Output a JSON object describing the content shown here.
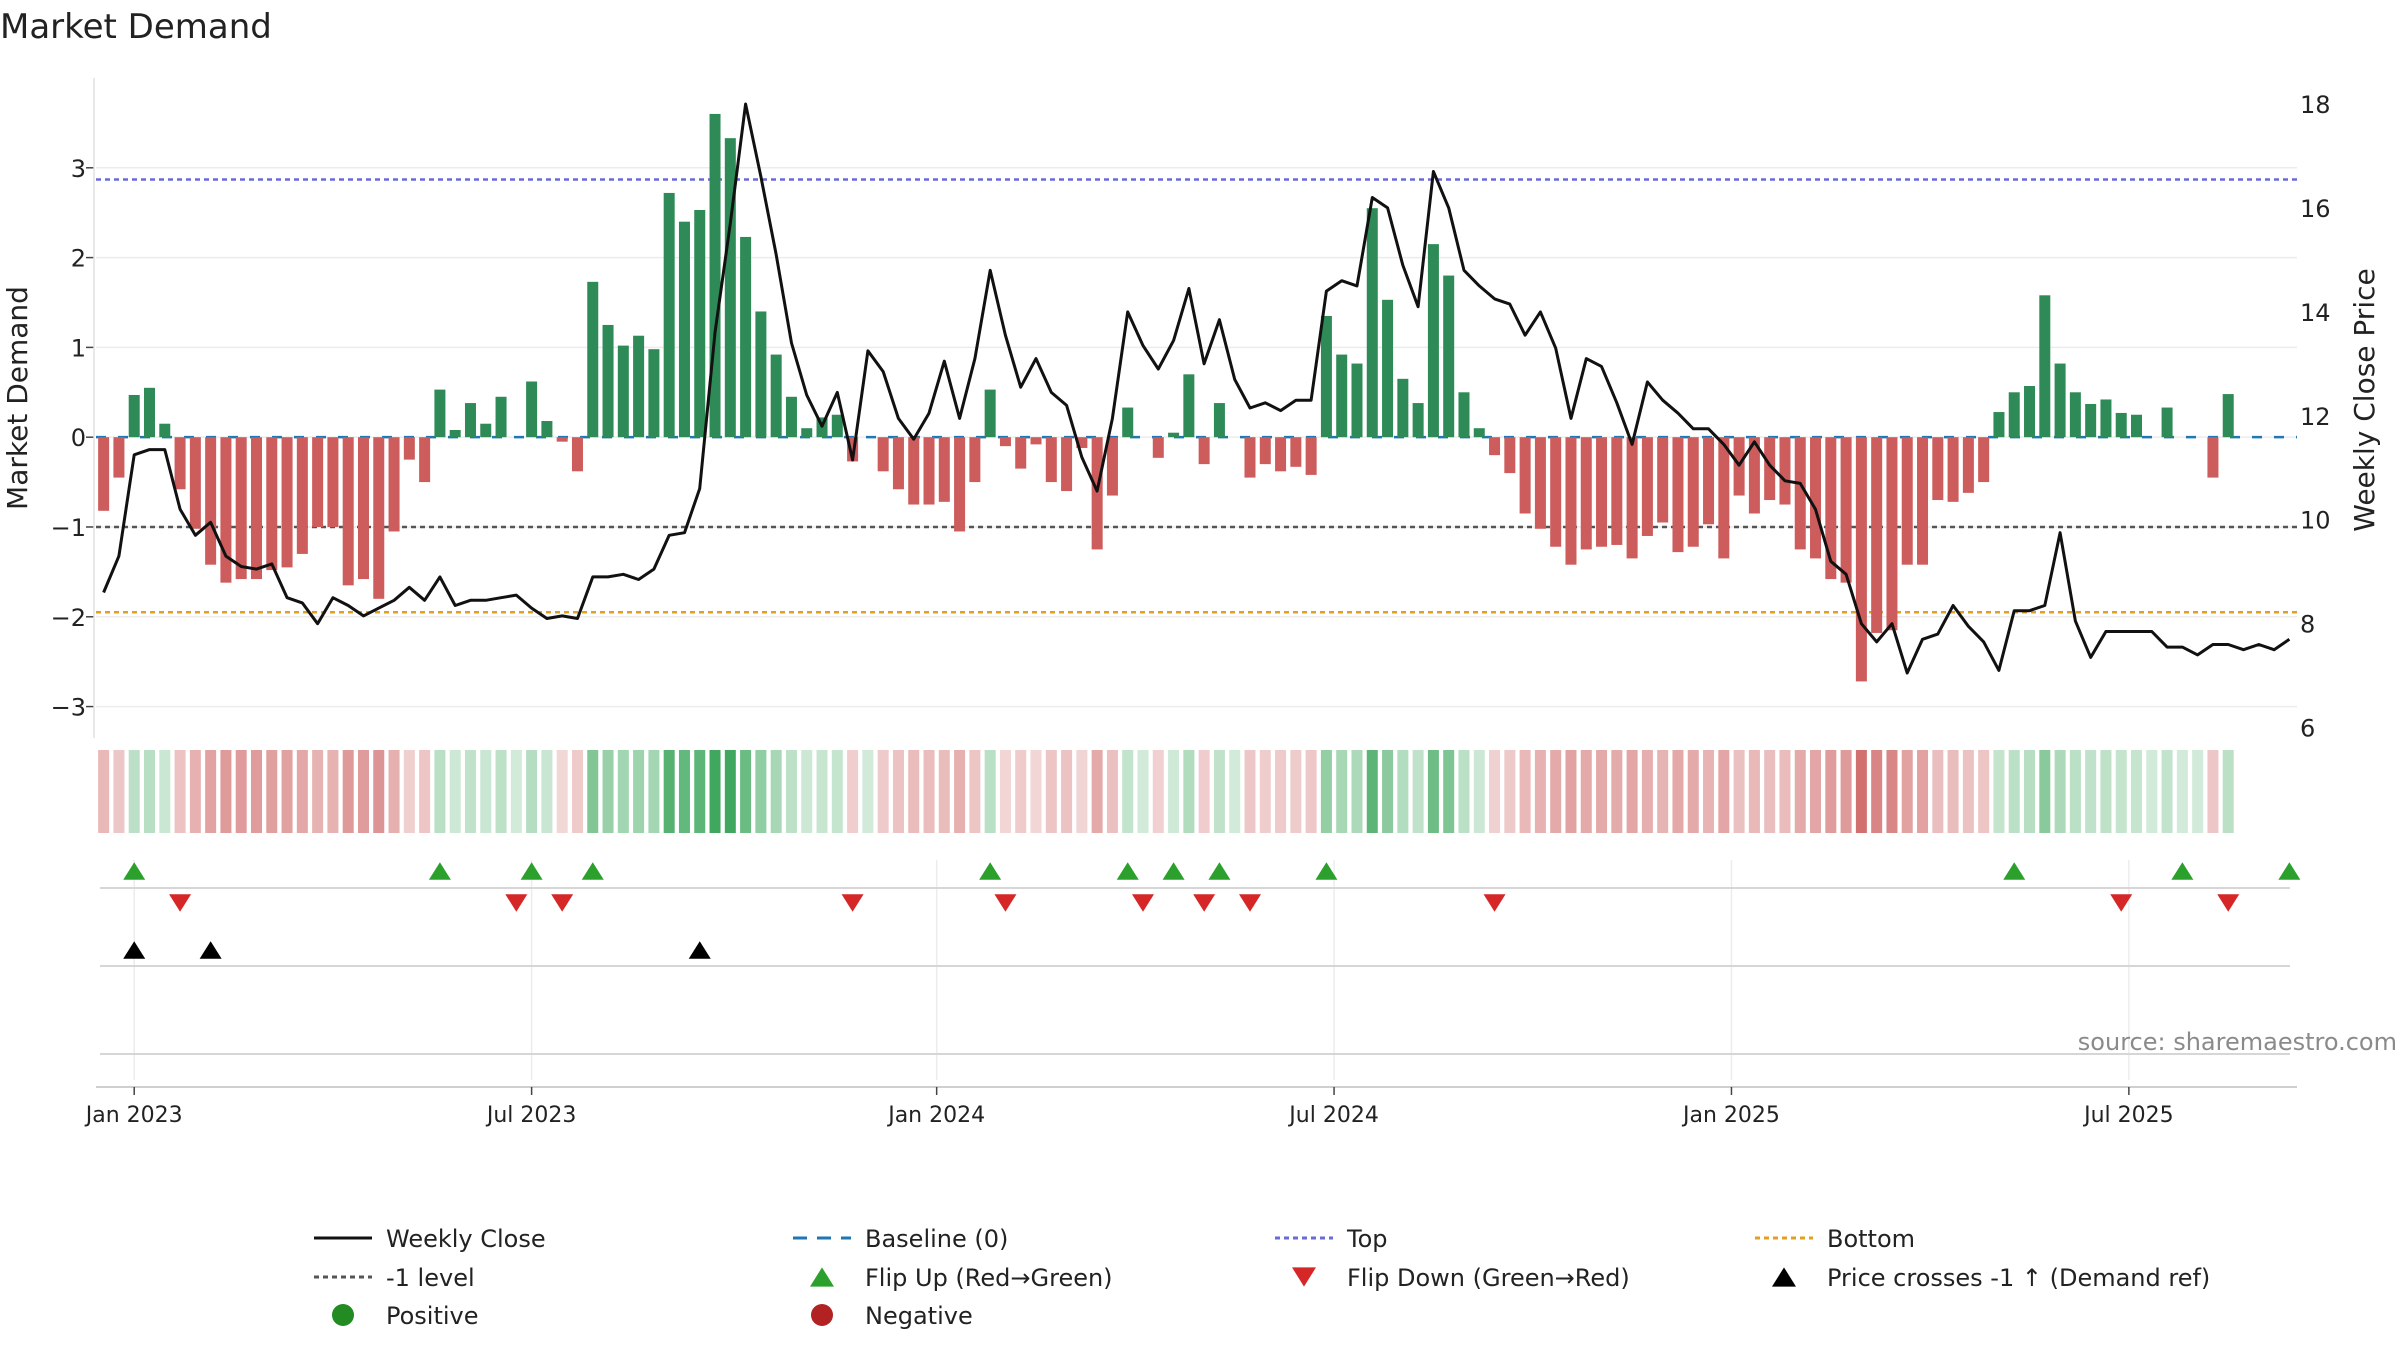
{
  "chart_data": {
    "type": "bar",
    "title": "Market Demand",
    "ylabel": "Market Demand",
    "y2label": "Weekly Close Price",
    "ylim": [
      -3.35,
      4.0
    ],
    "y2lim": [
      5.8,
      18.5
    ],
    "yticks": [
      {
        "v": 3,
        "label": "3"
      },
      {
        "v": 2,
        "label": "2"
      },
      {
        "v": 1,
        "label": "1"
      },
      {
        "v": 0,
        "label": "0"
      },
      {
        "v": -1,
        "label": "−1"
      },
      {
        "v": -2,
        "label": "−2"
      },
      {
        "v": -3,
        "label": "−3"
      }
    ],
    "y2ticks": [
      {
        "v": 18,
        "label": "18"
      },
      {
        "v": 16,
        "label": "16"
      },
      {
        "v": 14,
        "label": "14"
      },
      {
        "v": 12,
        "label": "12"
      },
      {
        "v": 10,
        "label": "10"
      },
      {
        "v": 8,
        "label": "8"
      },
      {
        "v": 6,
        "label": "6"
      }
    ],
    "xticks": [
      {
        "week": 2,
        "label": "Jan 2023"
      },
      {
        "week": 28,
        "label": "Jul 2023"
      },
      {
        "week": 54.5,
        "label": "Jan 2024"
      },
      {
        "week": 80.5,
        "label": "Jul 2024"
      },
      {
        "week": 106.5,
        "label": "Jan 2025"
      },
      {
        "week": 132.5,
        "label": "Jul 2025"
      }
    ],
    "x_range": [
      -0.5,
      143.5
    ],
    "levels": {
      "top": 2.87,
      "minus_one": -1.0,
      "bottom": -1.95,
      "baseline": 0
    },
    "colors": {
      "positive": "#2e8b57",
      "negative": "#cd5c5c",
      "price": "#111111",
      "baseline": "#1f77b4",
      "top": "#6a6ad8",
      "minus_one": "#555555",
      "bottom": "#e0a020",
      "flip_up": "#2ca02c",
      "flip_down": "#d62728",
      "cross": "#000000",
      "positive_dot": "#228b22",
      "negative_dot": "#b22222"
    },
    "demand": [
      -0.82,
      -0.45,
      0.47,
      0.55,
      0.15,
      -0.58,
      -1.02,
      -1.42,
      -1.62,
      -1.58,
      -1.58,
      -1.48,
      -1.45,
      -1.3,
      -1.0,
      -1.0,
      -1.65,
      -1.58,
      -1.8,
      -1.05,
      -0.25,
      -0.5,
      0.53,
      0.08,
      0.38,
      0.15,
      0.45,
      0.0,
      0.62,
      0.18,
      -0.05,
      -0.38,
      1.73,
      1.25,
      1.02,
      1.13,
      0.98,
      2.72,
      2.4,
      2.53,
      3.6,
      3.33,
      2.23,
      1.4,
      0.92,
      0.45,
      0.1,
      0.22,
      0.25,
      -0.27,
      0.0,
      -0.38,
      -0.58,
      -0.75,
      -0.75,
      -0.72,
      -1.05,
      -0.5,
      0.53,
      -0.1,
      -0.35,
      -0.08,
      -0.5,
      -0.6,
      -0.12,
      -1.25,
      -0.65,
      0.33,
      0.0,
      -0.23,
      0.05,
      0.7,
      -0.3,
      0.38,
      0.0,
      -0.45,
      -0.3,
      -0.38,
      -0.33,
      -0.42,
      1.35,
      0.92,
      0.82,
      2.55,
      1.53,
      0.65,
      0.38,
      2.15,
      1.8,
      0.5,
      0.1,
      -0.2,
      -0.4,
      -0.85,
      -1.02,
      -1.22,
      -1.42,
      -1.25,
      -1.22,
      -1.2,
      -1.35,
      -1.1,
      -0.95,
      -1.28,
      -1.22,
      -0.97,
      -1.35,
      -0.65,
      -0.85,
      -0.7,
      -0.75,
      -1.25,
      -1.35,
      -1.58,
      -1.62,
      -2.72,
      -2.18,
      -2.15,
      -1.42,
      -1.42,
      -0.7,
      -0.72,
      -0.62,
      -0.5,
      0.28,
      0.5,
      0.57,
      1.58,
      0.82,
      0.5,
      0.37,
      0.42,
      0.27,
      0.25,
      0.0,
      0.33,
      0.0,
      0.0,
      -0.45,
      0.48
    ],
    "close": [
      8.6,
      9.3,
      11.25,
      11.35,
      11.35,
      10.2,
      9.7,
      9.95,
      9.3,
      9.1,
      9.05,
      9.15,
      8.5,
      8.4,
      8.0,
      8.5,
      8.35,
      8.15,
      8.3,
      8.45,
      8.7,
      8.45,
      8.9,
      8.35,
      8.45,
      8.45,
      8.5,
      8.55,
      8.3,
      8.1,
      8.15,
      8.1,
      8.9,
      8.9,
      8.95,
      8.85,
      9.05,
      9.7,
      9.75,
      10.6,
      13.6,
      15.7,
      18.0,
      16.6,
      15.1,
      13.4,
      12.4,
      11.8,
      12.45,
      11.15,
      13.25,
      12.85,
      11.95,
      11.55,
      12.05,
      13.05,
      11.95,
      13.1,
      14.8,
      13.55,
      12.55,
      13.1,
      12.45,
      12.2,
      11.2,
      10.55,
      11.95,
      14.0,
      13.35,
      12.9,
      13.45,
      14.45,
      13.0,
      13.85,
      12.7,
      12.15,
      12.25,
      12.1,
      12.3,
      12.3,
      14.4,
      14.6,
      14.5,
      16.2,
      16.0,
      14.9,
      14.1,
      16.7,
      16.0,
      14.8,
      14.5,
      14.25,
      14.15,
      13.55,
      14.0,
      13.3,
      11.95,
      13.1,
      12.95,
      12.25,
      11.45,
      12.65,
      12.3,
      12.05,
      11.75,
      11.75,
      11.45,
      11.05,
      11.5,
      11.05,
      10.75,
      10.7,
      10.2,
      9.2,
      8.95,
      8.0,
      7.65,
      8.0,
      7.05,
      7.7,
      7.8,
      8.35,
      7.95,
      7.65,
      7.1,
      8.25,
      8.25,
      8.35,
      9.75,
      8.05,
      7.35,
      7.85,
      7.85,
      7.85,
      7.85,
      7.55,
      7.55,
      7.4,
      7.6,
      7.6,
      7.5,
      7.6,
      7.5,
      7.7
    ],
    "flip_up_weeks": [
      2,
      22,
      28,
      32,
      58,
      67,
      70,
      73,
      80,
      125,
      136,
      143
    ],
    "flip_down_weeks": [
      5,
      27,
      30,
      49,
      59,
      68,
      72,
      75,
      91,
      132,
      139
    ],
    "cross_weeks": [
      2,
      7,
      39
    ],
    "legend": {
      "weekly_close": "Weekly Close",
      "baseline": "Baseline (0)",
      "top": "Top",
      "bottom": "Bottom",
      "minus_one": "-1 level",
      "flip_up": "Flip Up (Red→Green)",
      "flip_down": "Flip Down (Green→Red)",
      "cross": "Price crosses -1 ↑ (Demand ref)",
      "positive": "Positive",
      "negative": "Negative"
    },
    "source": "source: sharemaestro.com"
  }
}
